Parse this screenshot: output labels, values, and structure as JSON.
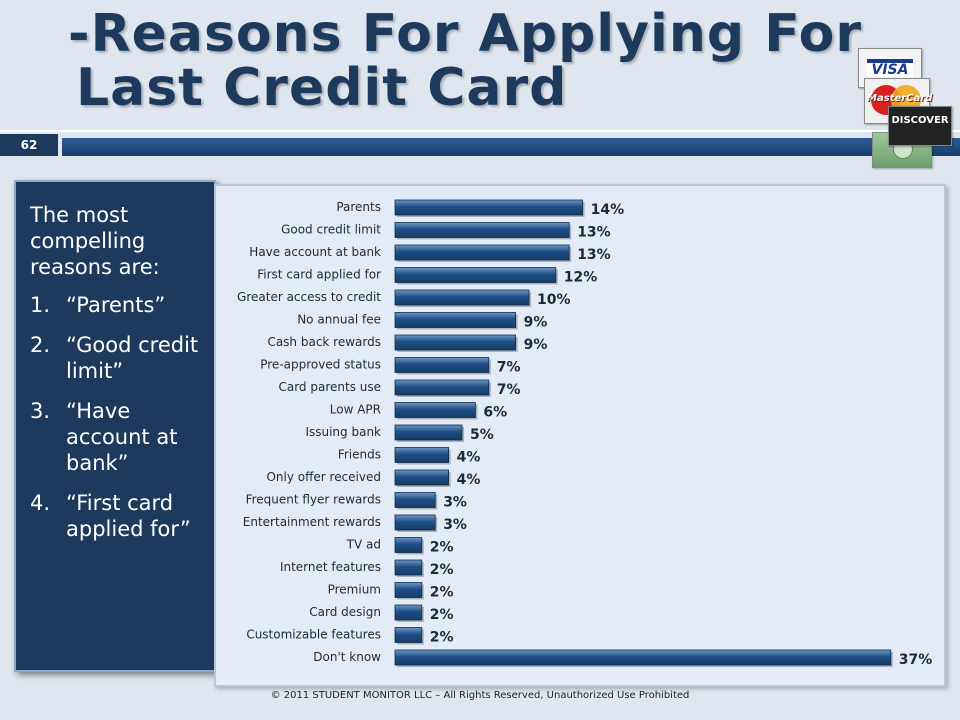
{
  "slide": {
    "title_line1": "-Reasons For Applying For",
    "title_line2": "Last Credit Card",
    "number": "62",
    "footer": "© 2011 STUDENT MONITOR LLC – All Rights Reserved, Unauthorized Use Prohibited"
  },
  "cards": {
    "visa": "VISA",
    "mastercard": "MasterCard",
    "discover": "DISCOVER"
  },
  "sidebar": {
    "intro": "The most compelling reasons are:",
    "items": [
      {
        "num": "1.",
        "text": "“Parents”"
      },
      {
        "num": "2.",
        "text": "“Good credit limit”"
      },
      {
        "num": "3.",
        "text": "“Have account at bank”"
      },
      {
        "num": "4.",
        "text": "“First card applied for”"
      }
    ]
  },
  "colors": {
    "title": "#1d3a5c",
    "bar": "#1e4f85",
    "panel": "#1d3a5c",
    "background": "#dfe6ef"
  },
  "chart_data": {
    "type": "bar",
    "orientation": "horizontal",
    "categories": [
      "Parents",
      "Good credit limit",
      "Have account at bank",
      "First card applied for",
      "Greater access to credit",
      "No annual fee",
      "Cash back rewards",
      "Pre-approved status",
      "Card parents use",
      "Low APR",
      "Issuing bank",
      "Friends",
      "Only offer received",
      "Frequent flyer rewards",
      "Entertainment rewards",
      "TV ad",
      "Internet features",
      "Premium",
      "Card design",
      "Customizable features",
      "Don't know"
    ],
    "values": [
      14,
      13,
      13,
      12,
      10,
      9,
      9,
      7,
      7,
      6,
      5,
      4,
      4,
      3,
      3,
      2,
      2,
      2,
      2,
      2,
      37
    ],
    "value_labels": [
      "14%",
      "13%",
      "13%",
      "12%",
      "10%",
      "9%",
      "9%",
      "7%",
      "7%",
      "6%",
      "5%",
      "4%",
      "4%",
      "3%",
      "3%",
      "2%",
      "2%",
      "2%",
      "2%",
      "2%",
      "37%"
    ],
    "unit": "%",
    "grid": false,
    "legend": "none"
  }
}
